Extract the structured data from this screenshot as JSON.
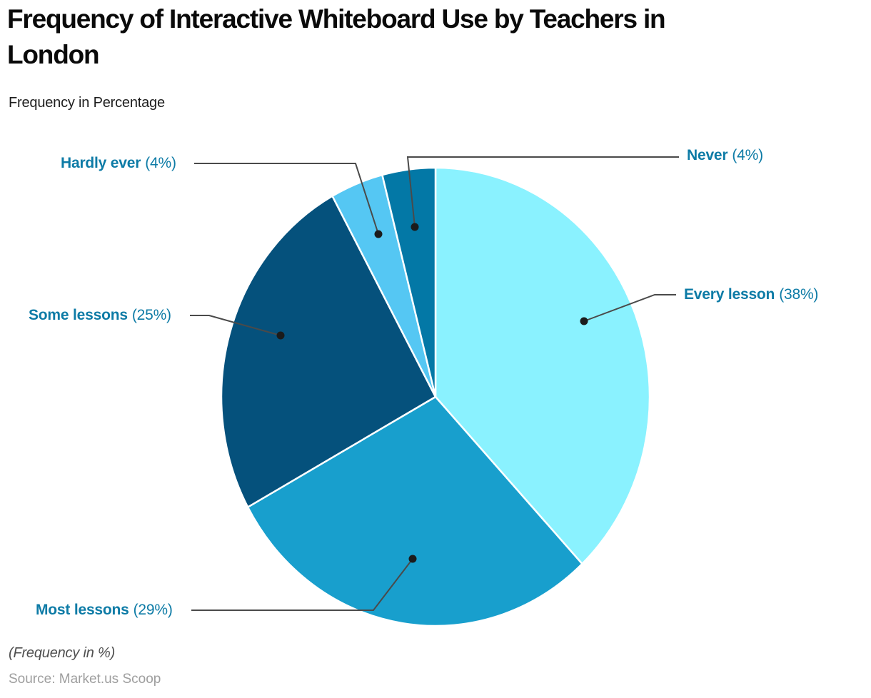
{
  "header": {
    "title": "Frequency of Interactive Whiteboard Use by Teachers in\nLondon",
    "subtitle": "Frequency in Percentage"
  },
  "footer": {
    "note": "(Frequency in %)",
    "source": "Source: Market.us Scoop"
  },
  "chart_data": {
    "type": "pie",
    "title": "Frequency of Interactive Whiteboard Use by Teachers in London",
    "unit": "percent",
    "start_angle": "12-oclock",
    "direction": "clockwise",
    "legend_position": "none",
    "slices": [
      {
        "label": "Every lesson",
        "value": 38,
        "pct_text": "(38%)",
        "color": "#8AF2FF"
      },
      {
        "label": "Most lessons",
        "value": 29,
        "pct_text": "(29%)",
        "color": "#189FCD"
      },
      {
        "label": "Some lessons",
        "value": 25,
        "pct_text": "(25%)",
        "color": "#05517C"
      },
      {
        "label": "Hardly ever",
        "value": 4,
        "pct_text": "(4%)",
        "color": "#55C7F3"
      },
      {
        "label": "Never",
        "value": 4,
        "pct_text": "(4%)",
        "color": "#0378A6"
      }
    ],
    "style": {
      "label_text_color": "#0d7ba6",
      "leader_line_color": "#4a4a4a",
      "leader_dot_color": "#1b1b1b",
      "slice_separator_color": "#ffffff"
    }
  }
}
